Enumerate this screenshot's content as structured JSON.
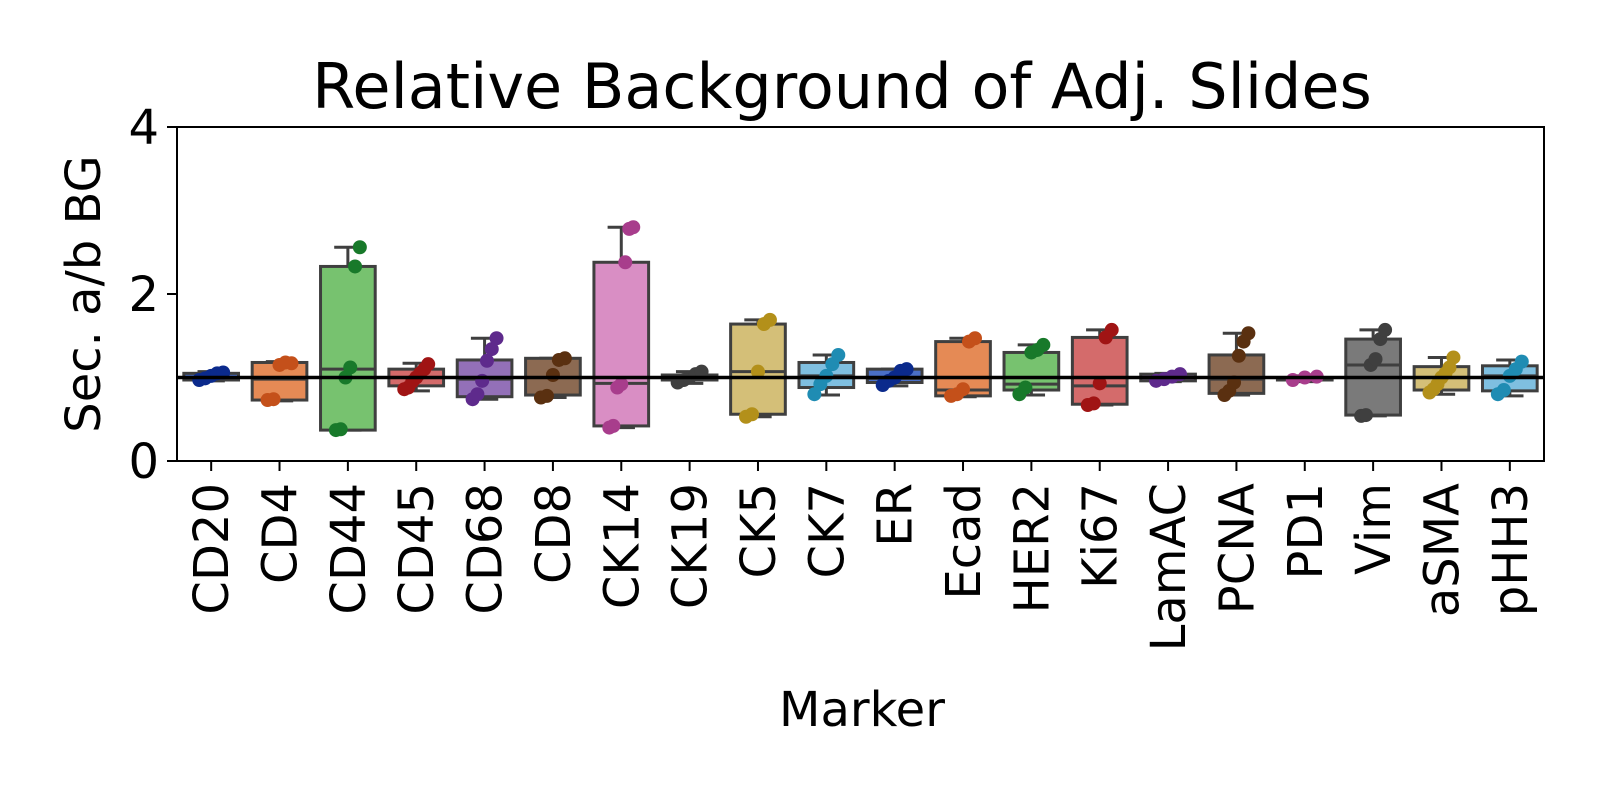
{
  "chart_data": {
    "type": "box",
    "title": "Relative Background of Adj. Slides",
    "xlabel": "Marker",
    "ylabel": "Sec. a/b BG",
    "ylim": [
      0,
      4
    ],
    "yticks": [
      0,
      2,
      4
    ],
    "reference_line": 1.0,
    "grid": false,
    "categories": [
      {
        "name": "CD20",
        "box_color": "#4a6fc7",
        "point_color": "#0b2a8c",
        "q1": 0.97,
        "median": 1.0,
        "q3": 1.05,
        "whisker_low": 0.96,
        "whisker_high": 1.07,
        "points": [
          0.97,
          0.99,
          1.02,
          1.05,
          1.06
        ]
      },
      {
        "name": "CD4",
        "box_color": "#e58a55",
        "point_color": "#c4501a",
        "q1": 0.73,
        "median": 0.98,
        "q3": 1.18,
        "whisker_low": 0.72,
        "whisker_high": 1.19,
        "points": [
          0.73,
          0.74,
          1.15,
          1.18,
          1.17
        ]
      },
      {
        "name": "CD44",
        "box_color": "#77c26f",
        "point_color": "#18792a",
        "q1": 0.37,
        "median": 1.1,
        "q3": 2.33,
        "whisker_low": 0.37,
        "whisker_high": 2.56,
        "points": [
          0.37,
          0.38,
          1.0,
          1.12,
          2.33,
          2.56
        ]
      },
      {
        "name": "CD45",
        "box_color": "#d46b6b",
        "point_color": "#a01414",
        "q1": 0.9,
        "median": 1.0,
        "q3": 1.1,
        "whisker_low": 0.84,
        "whisker_high": 1.17,
        "points": [
          0.86,
          0.88,
          0.95,
          1.0,
          1.05,
          1.1,
          1.16
        ]
      },
      {
        "name": "CD68",
        "box_color": "#9370b8",
        "point_color": "#5e2a8c",
        "q1": 0.77,
        "median": 0.98,
        "q3": 1.21,
        "whisker_low": 0.74,
        "whisker_high": 1.47,
        "points": [
          0.74,
          0.8,
          0.96,
          1.2,
          1.34,
          1.47
        ]
      },
      {
        "name": "CD8",
        "box_color": "#8c6a52",
        "point_color": "#5a3010",
        "q1": 0.79,
        "median": 1.0,
        "q3": 1.23,
        "whisker_low": 0.76,
        "whisker_high": 1.23,
        "points": [
          0.76,
          0.78,
          1.03,
          1.21,
          1.23
        ]
      },
      {
        "name": "CK14",
        "box_color": "#d98ec4",
        "point_color": "#a83d8c",
        "q1": 0.42,
        "median": 0.93,
        "q3": 2.38,
        "whisker_low": 0.4,
        "whisker_high": 2.8,
        "points": [
          0.4,
          0.42,
          0.88,
          0.92,
          2.38,
          2.78,
          2.8
        ]
      },
      {
        "name": "CK19",
        "box_color": "#8c8c8c",
        "point_color": "#3f3f3f",
        "q1": 0.97,
        "median": 1.0,
        "q3": 1.03,
        "whisker_low": 0.93,
        "whisker_high": 1.07,
        "points": [
          0.94,
          0.97,
          1.0,
          1.04,
          1.07
        ]
      },
      {
        "name": "CK5",
        "box_color": "#d4bf78",
        "point_color": "#b3901a",
        "q1": 0.56,
        "median": 1.07,
        "q3": 1.64,
        "whisker_low": 0.53,
        "whisker_high": 1.69,
        "points": [
          0.53,
          0.56,
          1.07,
          1.64,
          1.69
        ]
      },
      {
        "name": "CK7",
        "box_color": "#7fbfe0",
        "point_color": "#1f8cb3",
        "q1": 0.88,
        "median": 1.02,
        "q3": 1.18,
        "whisker_low": 0.79,
        "whisker_high": 1.27,
        "points": [
          0.8,
          0.92,
          1.02,
          1.16,
          1.27
        ]
      },
      {
        "name": "ER",
        "box_color": "#4a6fc7",
        "point_color": "#0b2a8c",
        "q1": 0.94,
        "median": 0.99,
        "q3": 1.1,
        "whisker_low": 0.9,
        "whisker_high": 1.1,
        "points": [
          0.91,
          0.96,
          1.0,
          1.08,
          1.1
        ]
      },
      {
        "name": "Ecad",
        "box_color": "#e58a55",
        "point_color": "#c4501a",
        "q1": 0.78,
        "median": 0.85,
        "q3": 1.43,
        "whisker_low": 0.77,
        "whisker_high": 1.47,
        "points": [
          0.78,
          0.8,
          0.86,
          1.43,
          1.47
        ]
      },
      {
        "name": "HER2",
        "box_color": "#77c26f",
        "point_color": "#18792a",
        "q1": 0.85,
        "median": 0.92,
        "q3": 1.3,
        "whisker_low": 0.79,
        "whisker_high": 1.39,
        "points": [
          0.8,
          0.88,
          1.3,
          1.33,
          1.39
        ]
      },
      {
        "name": "Ki67",
        "box_color": "#d46b6b",
        "point_color": "#a01414",
        "q1": 0.68,
        "median": 0.9,
        "q3": 1.48,
        "whisker_low": 0.67,
        "whisker_high": 1.57,
        "points": [
          0.67,
          0.69,
          0.93,
          1.48,
          1.57
        ]
      },
      {
        "name": "LamAC",
        "box_color": "#9370b8",
        "point_color": "#5e2a8c",
        "q1": 0.96,
        "median": 1.0,
        "q3": 1.04,
        "whisker_low": 0.95,
        "whisker_high": 1.05,
        "points": [
          0.96,
          0.98,
          1.01,
          1.04
        ]
      },
      {
        "name": "PCNA",
        "box_color": "#8c6a52",
        "point_color": "#5a3010",
        "q1": 0.81,
        "median": 0.98,
        "q3": 1.27,
        "whisker_low": 0.79,
        "whisker_high": 1.53,
        "points": [
          0.79,
          0.84,
          0.94,
          1.26,
          1.43,
          1.53
        ]
      },
      {
        "name": "PD1",
        "box_color": "#d98ec4",
        "point_color": "#a83d8c",
        "q1": 0.97,
        "median": 0.99,
        "q3": 1.0,
        "whisker_low": 0.95,
        "whisker_high": 1.02,
        "points": [
          0.97,
          1.0,
          1.01
        ]
      },
      {
        "name": "Vim",
        "box_color": "#7a7a7a",
        "point_color": "#3f3f3f",
        "q1": 0.55,
        "median": 1.15,
        "q3": 1.46,
        "whisker_low": 0.54,
        "whisker_high": 1.57,
        "points": [
          0.54,
          0.55,
          1.15,
          1.22,
          1.46,
          1.57
        ]
      },
      {
        "name": "aSMA",
        "box_color": "#d4bf78",
        "point_color": "#b3901a",
        "q1": 0.85,
        "median": 1.0,
        "q3": 1.13,
        "whisker_low": 0.8,
        "whisker_high": 1.24,
        "points": [
          0.82,
          0.86,
          0.92,
          1.0,
          1.05,
          1.12,
          1.24
        ]
      },
      {
        "name": "pHH3",
        "box_color": "#7fbfe0",
        "point_color": "#1f8cb3",
        "q1": 0.84,
        "median": 1.02,
        "q3": 1.14,
        "whisker_low": 0.78,
        "whisker_high": 1.21,
        "points": [
          0.8,
          0.85,
          1.02,
          1.1,
          1.19
        ]
      }
    ]
  }
}
